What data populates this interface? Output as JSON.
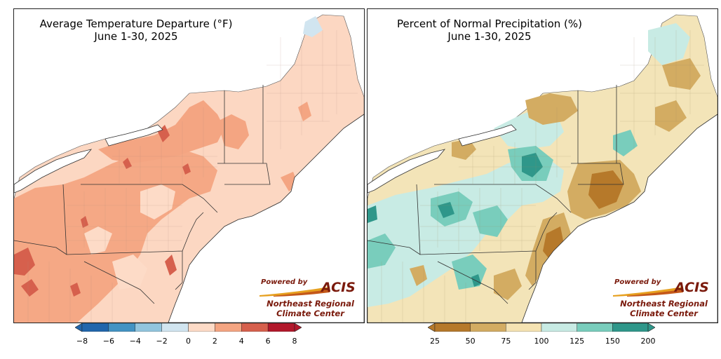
{
  "left_panel": {
    "title_line1": "Average Temperature Departure (°F)",
    "title_line2": "June 1-30, 2025",
    "colorbar": {
      "ticks": [
        "−8",
        "−6",
        "−4",
        "−2",
        "0",
        "2",
        "4",
        "6",
        "8"
      ],
      "colors": [
        "#2166ac",
        "#4393c3",
        "#92c5de",
        "#d1e5f0",
        "#fddbc7",
        "#f4a582",
        "#d6604d",
        "#b2182b"
      ]
    },
    "base_color": "#fcd7c2"
  },
  "right_panel": {
    "title_line1": "Percent of Normal Precipitation (%)",
    "title_line2": "June 1-30, 2025",
    "colorbar": {
      "ticks": [
        "25",
        "50",
        "75",
        "100",
        "125",
        "150",
        "200"
      ],
      "colors": [
        "#b6792a",
        "#d3ac62",
        "#f5e3b3",
        "#c8ebe4",
        "#79cdbc",
        "#2f978a"
      ]
    },
    "base_color": "#f3e4b8"
  },
  "logo": {
    "powered_by": "Powered by",
    "acis": "ACIS",
    "org_line1": "Northeast Regional",
    "org_line2": "Climate Center"
  }
}
